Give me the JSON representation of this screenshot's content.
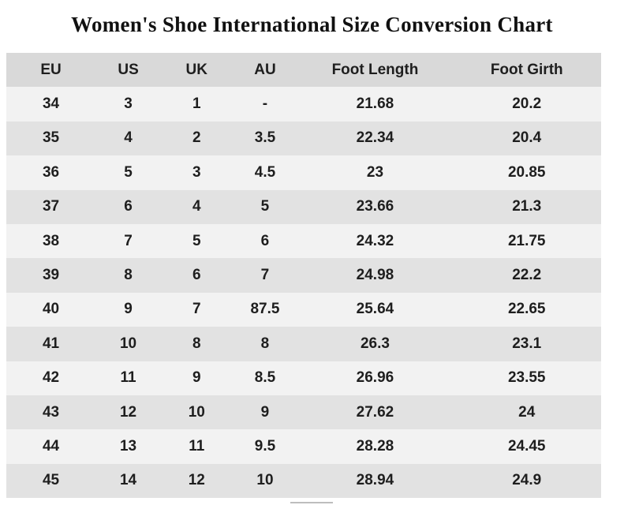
{
  "chart_data": {
    "type": "table",
    "title": "Women's Shoe International Size Conversion Chart",
    "columns": [
      "EU",
      "US",
      "UK",
      "AU",
      "Foot Length",
      "Foot Girth"
    ],
    "rows": [
      [
        "34",
        "3",
        "1",
        "-",
        "21.68",
        "20.2"
      ],
      [
        "35",
        "4",
        "2",
        "3.5",
        "22.34",
        "20.4"
      ],
      [
        "36",
        "5",
        "3",
        "4.5",
        "23",
        "20.85"
      ],
      [
        "37",
        "6",
        "4",
        "5",
        "23.66",
        "21.3"
      ],
      [
        "38",
        "7",
        "5",
        "6",
        "24.32",
        "21.75"
      ],
      [
        "39",
        "8",
        "6",
        "7",
        "24.98",
        "22.2"
      ],
      [
        "40",
        "9",
        "7",
        "87.5",
        "25.64",
        "22.65"
      ],
      [
        "41",
        "10",
        "8",
        "8",
        "26.3",
        "23.1"
      ],
      [
        "42",
        "11",
        "9",
        "8.5",
        "26.96",
        "23.55"
      ],
      [
        "43",
        "12",
        "10",
        "9",
        "27.62",
        "24"
      ],
      [
        "44",
        "13",
        "11",
        "9.5",
        "28.28",
        "24.45"
      ],
      [
        "45",
        "14",
        "12",
        "10",
        "28.94",
        "24.9"
      ]
    ],
    "layout": {
      "striped": true,
      "header_position": "top",
      "text_align": "center"
    }
  },
  "colors": {
    "header_bg": "#d9d9d9",
    "row_light": "#f2f2f2",
    "row_dark": "#e2e2e2",
    "cell_text": "#1e1e1e",
    "title_text": "#111111",
    "divider": "#9a9a9a",
    "page_bg": "#ffffff"
  }
}
